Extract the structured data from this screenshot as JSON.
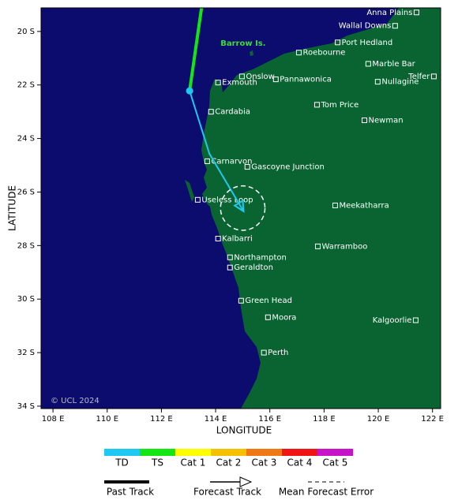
{
  "map": {
    "xlim": [
      107.56,
      122.3
    ],
    "ylim": [
      -34.09,
      -19.12
    ],
    "xticks": [
      {
        "value": 108,
        "label": "108 E"
      },
      {
        "value": 110,
        "label": "110 E"
      },
      {
        "value": 112,
        "label": "112 E"
      },
      {
        "value": 114,
        "label": "114 E"
      },
      {
        "value": 116,
        "label": "116 E"
      },
      {
        "value": 118,
        "label": "118 E"
      },
      {
        "value": 120,
        "label": "120 E"
      },
      {
        "value": 122,
        "label": "122 E"
      }
    ],
    "yticks": [
      {
        "value": -20,
        "label": "20 S"
      },
      {
        "value": -22,
        "label": "22 S"
      },
      {
        "value": -24,
        "label": "24 S"
      },
      {
        "value": -26,
        "label": "26 S"
      },
      {
        "value": -28,
        "label": "28 S"
      },
      {
        "value": -30,
        "label": "30 S"
      },
      {
        "value": -32,
        "label": "32 S"
      },
      {
        "value": -34,
        "label": "34 S"
      }
    ],
    "xlabel": "LONGITUDE",
    "ylabel": "LATITUDE",
    "ocean_color": "#0c0c6e",
    "land_color": "#0a6432",
    "credit": "© UCL 2024",
    "region_labels": [
      {
        "text": "Barrow Is.",
        "lon": 114.18,
        "lat": -20.44,
        "color": "#3cdc3c"
      }
    ],
    "past_track": {
      "lons": [
        113.48,
        113.04
      ],
      "lats": [
        -19.12,
        -22.22
      ],
      "color": "#14e614"
    },
    "forecast_track": {
      "lons": [
        113.04,
        113.77,
        115.03
      ],
      "lats": [
        -22.22,
        -24.57,
        -26.72
      ],
      "color": "#1ec8f0"
    },
    "error_circle": {
      "lon": 115.0,
      "lat": -26.6,
      "radius": 0.82
    },
    "places": [
      {
        "name": "Anna Plains",
        "lon": 121.41,
        "lat": -19.29,
        "label_side": "left"
      },
      {
        "name": "Wallal Downs",
        "lon": 120.62,
        "lat": -19.79,
        "label_side": "left"
      },
      {
        "name": "Port Hedland",
        "lon": 118.5,
        "lat": -20.41,
        "label_side": "right"
      },
      {
        "name": "Roebourne",
        "lon": 117.07,
        "lat": -20.79,
        "label_side": "right"
      },
      {
        "name": "Marble Bar",
        "lon": 119.63,
        "lat": -21.21,
        "label_side": "right"
      },
      {
        "name": "Telfer",
        "lon": 122.05,
        "lat": -21.68,
        "label_side": "left"
      },
      {
        "name": "Onslow",
        "lon": 114.97,
        "lat": -21.68,
        "label_side": "right"
      },
      {
        "name": "Pannawonica",
        "lon": 116.22,
        "lat": -21.79,
        "label_side": "right"
      },
      {
        "name": "Exmouth",
        "lon": 114.09,
        "lat": -21.91,
        "label_side": "right"
      },
      {
        "name": "Nullagine",
        "lon": 119.98,
        "lat": -21.88,
        "label_side": "right"
      },
      {
        "name": "Tom Price",
        "lon": 117.74,
        "lat": -22.74,
        "label_side": "right"
      },
      {
        "name": "Cardabia",
        "lon": 113.83,
        "lat": -23.0,
        "label_side": "right"
      },
      {
        "name": "Newman",
        "lon": 119.49,
        "lat": -23.32,
        "label_side": "right"
      },
      {
        "name": "Carnarvon",
        "lon": 113.69,
        "lat": -24.85,
        "label_side": "right"
      },
      {
        "name": "Gascoyne Junction",
        "lon": 115.17,
        "lat": -25.06,
        "label_side": "right"
      },
      {
        "name": "Useless Loop",
        "lon": 113.34,
        "lat": -26.29,
        "label_side": "right"
      },
      {
        "name": "Meekatharra",
        "lon": 118.41,
        "lat": -26.5,
        "label_side": "right"
      },
      {
        "name": "Kalbarri",
        "lon": 114.09,
        "lat": -27.74,
        "label_side": "right"
      },
      {
        "name": "Warramboo",
        "lon": 117.77,
        "lat": -28.03,
        "label_side": "right"
      },
      {
        "name": "Northampton",
        "lon": 114.53,
        "lat": -28.44,
        "label_side": "right"
      },
      {
        "name": "Geraldton",
        "lon": 114.53,
        "lat": -28.82,
        "label_side": "right"
      },
      {
        "name": "Green Head",
        "lon": 114.94,
        "lat": -30.06,
        "label_side": "right"
      },
      {
        "name": "Moora",
        "lon": 115.93,
        "lat": -30.68,
        "label_side": "right"
      },
      {
        "name": "Kalgoorlie",
        "lon": 121.38,
        "lat": -30.79,
        "label_side": "left"
      },
      {
        "name": "Perth",
        "lon": 115.78,
        "lat": -32.0,
        "label_side": "right"
      }
    ]
  },
  "legend": {
    "categories": [
      {
        "name": "TD",
        "color": "#1ec8f0"
      },
      {
        "name": "TS",
        "color": "#14e614"
      },
      {
        "name": "Cat 1",
        "color": "#ffff00"
      },
      {
        "name": "Cat 2",
        "color": "#f5c000"
      },
      {
        "name": "Cat 3",
        "color": "#f07814"
      },
      {
        "name": "Cat 4",
        "color": "#f01414"
      },
      {
        "name": "Cat 5",
        "color": "#c814c8"
      }
    ],
    "lines": [
      "Past Track",
      "Forecast Track",
      "Mean Forecast Error"
    ]
  }
}
